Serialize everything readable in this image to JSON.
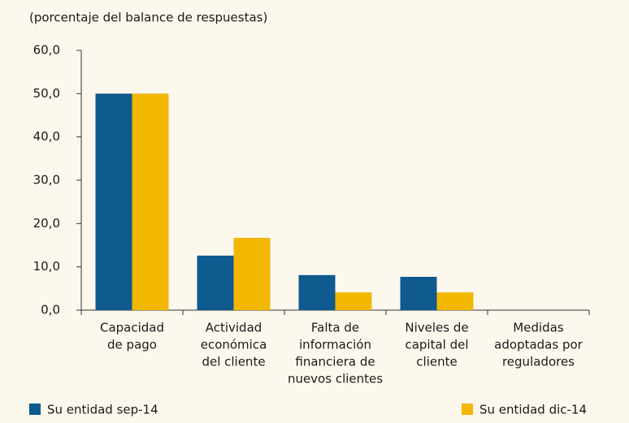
{
  "chart_data": {
    "type": "bar",
    "subtitle": "(porcentaje del balance de respuestas)",
    "categories": [
      [
        "Capacidad",
        "de pago"
      ],
      [
        "Actividad",
        "económica",
        "del cliente"
      ],
      [
        "Falta de",
        "información",
        "financiera de",
        "nuevos clientes"
      ],
      [
        "Niveles de",
        "capital del",
        "cliente"
      ],
      [
        "Medidas",
        "adoptadas por",
        "reguladores"
      ]
    ],
    "series": [
      {
        "name": "Su entidad sep-14",
        "color": "#0f5a8f",
        "values": [
          50.0,
          12.6,
          8.1,
          7.7,
          0.0
        ]
      },
      {
        "name": "Su entidad dic-14",
        "color": "#f2b700",
        "values": [
          50.0,
          16.7,
          4.1,
          4.1,
          0.0
        ]
      }
    ],
    "ylim": [
      0,
      60
    ],
    "yticks": [
      {
        "value": 0,
        "label": "0,0"
      },
      {
        "value": 10,
        "label": "10,0"
      },
      {
        "value": 20,
        "label": "20,0"
      },
      {
        "value": 30,
        "label": "30,0"
      },
      {
        "value": 40,
        "label": "40,0"
      },
      {
        "value": 50,
        "label": "50,0"
      },
      {
        "value": 60,
        "label": "60,0"
      }
    ],
    "grid": false
  }
}
